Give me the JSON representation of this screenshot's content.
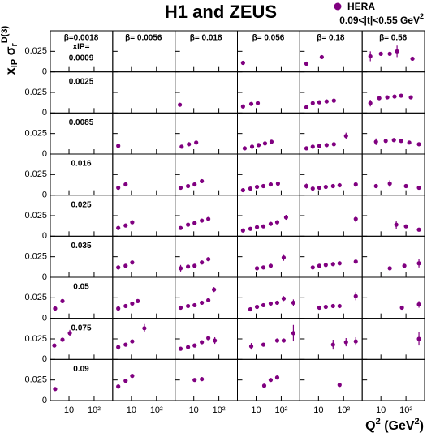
{
  "chart_data": {
    "type": "scatter",
    "title": "H1 and ZEUS",
    "legend": "HERA",
    "t_range": [
      "0.09<|t|<0.55 GeV",
      "2"
    ],
    "ylabel": [
      "x",
      "IP",
      " σ",
      "r",
      "D(3)"
    ],
    "xlabel": [
      "Q",
      "2",
      " (GeV",
      "2",
      ")"
    ],
    "betas": [
      "β=0.0018",
      "β= 0.0056",
      "β= 0.018",
      "β= 0.056",
      "β= 0.18",
      "β= 0.56"
    ],
    "xip_label": "xIP=",
    "xips": [
      "0.0009",
      "0.0025",
      "0.0085",
      "0.016",
      "0.025",
      "0.035",
      "0.05",
      "0.075",
      "0.09"
    ],
    "color": "#800080",
    "log_x": true,
    "xlim": [
      1.8,
      550
    ],
    "xticks": [
      10,
      {
        "value": 100,
        "label": "10²"
      }
    ],
    "ylim": [
      0,
      0.05
    ],
    "yticks": [
      0,
      0.025
    ],
    "panels": [
      [
        {
          "x": [],
          "y": [],
          "err": []
        },
        {
          "x": [],
          "y": [],
          "err": []
        },
        {
          "x": [],
          "y": [],
          "err": []
        },
        {
          "x": [
            3.0
          ],
          "y": [
            0.011
          ],
          "err": [
            null
          ]
        },
        {
          "x": [
            3.3,
            13.5
          ],
          "y": [
            0.01,
            0.018
          ],
          "err": [
            null,
            null
          ]
        },
        {
          "x": [
            3.8,
            10,
            22.6,
            44,
            181
          ],
          "y": [
            0.019,
            0.022,
            0.022,
            0.025,
            0.016
          ],
          "err": [
            0.006,
            null,
            null,
            0.007,
            null
          ]
        }
      ],
      [
        {
          "x": [],
          "y": [],
          "err": []
        },
        {
          "x": [],
          "y": [],
          "err": []
        },
        {
          "x": [
            2.8
          ],
          "y": [
            0.01
          ],
          "err": [
            null
          ]
        },
        {
          "x": [
            3.0,
            6.4,
            11.6
          ],
          "y": [
            0.008,
            0.011,
            0.012
          ],
          "err": [
            null,
            null,
            null
          ]
        },
        {
          "x": [
            3.3,
            5.9,
            10.8,
            21,
            41
          ],
          "y": [
            0.007,
            0.012,
            0.013,
            0.014,
            0.015
          ],
          "err": [
            null,
            null,
            null,
            null,
            null
          ]
        },
        {
          "x": [
            3.8,
            8.6,
            18,
            35,
            64,
            156
          ],
          "y": [
            0.012,
            0.018,
            0.019,
            0.02,
            0.021,
            0.019
          ],
          "err": [
            0.004,
            null,
            null,
            null,
            null,
            null
          ]
        }
      ],
      [
        {
          "x": [],
          "y": [],
          "err": []
        },
        {
          "x": [
            3.0
          ],
          "y": [
            0.01
          ],
          "err": [
            null
          ]
        },
        {
          "x": [
            3.3,
            6.4,
            12.5
          ],
          "y": [
            0.009,
            0.012,
            0.014
          ],
          "err": [
            null,
            null,
            null
          ]
        },
        {
          "x": [
            3.5,
            6.9,
            12.5,
            22.6,
            41
          ],
          "y": [
            0.007,
            0.009,
            0.011,
            0.013,
            0.015
          ],
          "err": [
            null,
            null,
            null,
            null,
            null
          ]
        },
        {
          "x": [
            3.3,
            5.9,
            10.8,
            21,
            41,
            125
          ],
          "y": [
            0.007,
            0.009,
            0.01,
            0.011,
            0.012,
            0.022
          ],
          "err": [
            null,
            null,
            null,
            null,
            null,
            0.004
          ]
        },
        {
          "x": [
            6.4,
            15.6,
            33,
            64,
            135,
            328
          ],
          "y": [
            0.015,
            0.016,
            0.017,
            0.016,
            0.014,
            0.012
          ],
          "err": [
            0.004,
            null,
            null,
            null,
            null,
            null
          ]
        }
      ],
      [
        {
          "x": [],
          "y": [],
          "err": []
        },
        {
          "x": [
            3.0,
            5.9
          ],
          "y": [
            0.009,
            0.013
          ],
          "err": [
            null,
            null
          ]
        },
        {
          "x": [
            3.0,
            5.9,
            10.8,
            21
          ],
          "y": [
            0.009,
            0.011,
            0.013,
            0.017
          ],
          "err": [
            null,
            null,
            null,
            null
          ]
        },
        {
          "x": [
            3.0,
            5.9,
            10.8,
            19.5,
            38,
            74
          ],
          "y": [
            0.006,
            0.008,
            0.01,
            0.011,
            0.013,
            0.014
          ],
          "err": [
            null,
            null,
            null,
            null,
            null,
            null
          ]
        },
        {
          "x": [
            3.3,
            5.9,
            10.8,
            19.5,
            38,
            69,
            305
          ],
          "y": [
            0.011,
            0.008,
            0.009,
            0.01,
            0.011,
            0.012,
            0.013
          ],
          "err": [
            0.003,
            null,
            null,
            null,
            null,
            null,
            0.003
          ]
        },
        {
          "x": [
            6.4,
            22.6,
            100,
            328
          ],
          "y": [
            0.011,
            0.014,
            0.011,
            0.009
          ],
          "err": [
            null,
            0.004,
            null,
            null
          ]
        }
      ],
      [
        {
          "x": [],
          "y": [],
          "err": []
        },
        {
          "x": [
            3.0,
            5.9,
            10.8
          ],
          "y": [
            0.01,
            0.013,
            0.017
          ],
          "err": [
            null,
            null,
            null
          ]
        },
        {
          "x": [
            3.0,
            5.9,
            10.8,
            21,
            38
          ],
          "y": [
            0.01,
            0.014,
            0.016,
            0.019,
            0.021
          ],
          "err": [
            null,
            null,
            null,
            null,
            null
          ]
        },
        {
          "x": [
            3.0,
            5.9,
            10.8,
            19.5,
            38,
            69,
            156
          ],
          "y": [
            0.007,
            0.009,
            0.011,
            0.012,
            0.015,
            0.017,
            0.023
          ],
          "err": [
            null,
            null,
            null,
            null,
            null,
            null,
            0.003
          ]
        },
        {
          "x": [
            305
          ],
          "y": [
            0.021
          ],
          "err": [
            0.004
          ]
        },
        {
          "x": [
            41,
            100,
            328
          ],
          "y": [
            0.014,
            0.012,
            0.008
          ],
          "err": [
            0.005,
            null,
            null
          ]
        }
      ],
      [
        {
          "x": [],
          "y": [],
          "err": []
        },
        {
          "x": [
            3.0,
            5.9,
            10.8
          ],
          "y": [
            0.012,
            0.014,
            0.018
          ],
          "err": [
            null,
            null,
            null
          ]
        },
        {
          "x": [
            3.0,
            5.9,
            10.8,
            21,
            38
          ],
          "y": [
            0.011,
            0.013,
            0.014,
            0.018,
            0.022
          ],
          "err": [
            0.004,
            null,
            null,
            null,
            null
          ]
        },
        {
          "x": [
            10.8,
            19.5,
            38,
            125
          ],
          "y": [
            0.011,
            0.012,
            0.014,
            0.024
          ],
          "err": [
            null,
            null,
            null,
            0.004
          ]
        },
        {
          "x": [
            5.9,
            10.8,
            19.5,
            38,
            69,
            305
          ],
          "y": [
            0.012,
            0.014,
            0.015,
            0.016,
            0.017,
            0.019
          ],
          "err": [
            null,
            null,
            null,
            null,
            null,
            null
          ]
        },
        {
          "x": [
            22.6,
            86,
            328
          ],
          "y": [
            0.011,
            0.014,
            0.017
          ],
          "err": [
            0.002,
            null,
            0.005
          ]
        }
      ],
      [
        {
          "x": [
            2.8,
            5.5
          ],
          "y": [
            0.012,
            0.021
          ],
          "err": [
            null,
            null
          ]
        },
        {
          "x": [
            3.0,
            5.9,
            10.8,
            18
          ],
          "y": [
            0.012,
            0.015,
            0.018,
            0.021
          ],
          "err": [
            null,
            null,
            null,
            null
          ]
        },
        {
          "x": [
            3.0,
            5.9,
            10.8,
            21,
            38,
            64
          ],
          "y": [
            0.013,
            0.015,
            0.016,
            0.019,
            0.022,
            0.035
          ],
          "err": [
            null,
            null,
            null,
            null,
            null,
            0.003
          ]
        },
        {
          "x": [
            5.9,
            10.8,
            19.5,
            38,
            69,
            125,
            305
          ],
          "y": [
            0.011,
            0.014,
            0.016,
            0.018,
            0.019,
            0.024,
            0.019
          ],
          "err": [
            null,
            null,
            null,
            null,
            null,
            0.003,
            0.004
          ]
        },
        {
          "x": [
            10.8,
            19.5,
            38,
            69,
            305
          ],
          "y": [
            0.013,
            0.014,
            0.015,
            0.015,
            0.027
          ],
          "err": [
            null,
            null,
            null,
            null,
            0.005
          ]
        },
        {
          "x": [
            69,
            328
          ],
          "y": [
            0.013,
            0.017
          ],
          "err": [
            null,
            0.004
          ]
        }
      ],
      [
        {
          "x": [
            2.6,
            5.5,
            10.8
          ],
          "y": [
            0.017,
            0.024,
            0.032
          ],
          "err": [
            null,
            null,
            0.004
          ]
        },
        {
          "x": [
            3.0,
            5.9,
            10.8,
            33
          ],
          "y": [
            0.015,
            0.018,
            0.022,
            0.038
          ],
          "err": [
            0.003,
            null,
            null,
            0.005
          ]
        },
        {
          "x": [
            3.0,
            5.9,
            10.8,
            21,
            38,
            69
          ],
          "y": [
            0.013,
            0.015,
            0.017,
            0.021,
            0.026,
            0.023
          ],
          "err": [
            null,
            null,
            null,
            null,
            null,
            0.004
          ]
        },
        {
          "x": [
            6.4,
            19.5,
            69,
            125,
            305
          ],
          "y": [
            0.016,
            0.018,
            0.023,
            0.023,
            0.032
          ],
          "err": [
            0.004,
            null,
            null,
            null,
            0.01
          ]
        },
        {
          "x": [
            38,
            125,
            305
          ],
          "y": [
            0.018,
            0.021,
            0.022
          ],
          "err": [
            0.006,
            0.005,
            0.005
          ]
        },
        {
          "x": [
            328
          ],
          "y": [
            0.025
          ],
          "err": [
            0.008
          ]
        }
      ],
      [
        {
          "x": [
            2.8
          ],
          "y": [
            0.014
          ],
          "err": [
            0.002
          ]
        },
        {
          "x": [
            3.0,
            5.9,
            10.8
          ],
          "y": [
            0.017,
            0.024,
            0.03
          ],
          "err": [
            null,
            null,
            null
          ]
        },
        {
          "x": [
            10.8,
            21
          ],
          "y": [
            0.025,
            0.026
          ],
          "err": [
            null,
            null
          ]
        },
        {
          "x": [
            21,
            38,
            69
          ],
          "y": [
            0.018,
            0.025,
            0.028
          ],
          "err": [
            null,
            null,
            null
          ]
        },
        {
          "x": [
            69
          ],
          "y": [
            0.019
          ],
          "err": [
            0.002
          ]
        },
        {
          "x": [],
          "y": [],
          "err": []
        }
      ]
    ]
  }
}
